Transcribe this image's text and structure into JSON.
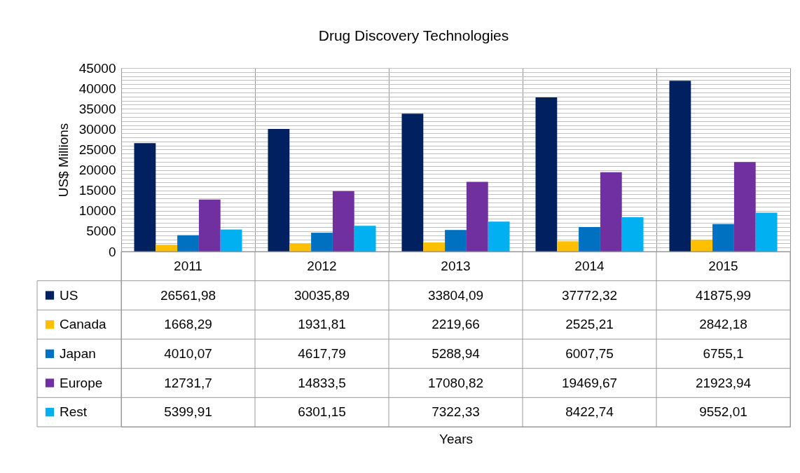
{
  "chart_data": {
    "type": "bar",
    "title": "Drug Discovery Technologies",
    "annotations": [
      "Years"
    ],
    "ylabel": "US$ Millions",
    "categories": [
      "2011",
      "2012",
      "2013",
      "2014",
      "2015"
    ],
    "series": [
      {
        "name": "US",
        "color": "#002060",
        "values": [
          26561.98,
          30035.89,
          33804.09,
          37772.32,
          41875.99
        ],
        "value_labels": [
          "26561,98",
          "30035,89",
          "33804,09",
          "37772,32",
          "41875,99"
        ]
      },
      {
        "name": "Canada",
        "color": "#ffc000",
        "values": [
          1668.29,
          1931.81,
          2219.66,
          2525.21,
          2842.18
        ],
        "value_labels": [
          "1668,29",
          "1931,81",
          "2219,66",
          "2525,21",
          "2842,18"
        ]
      },
      {
        "name": "Japan",
        "color": "#0070c0",
        "values": [
          4010.07,
          4617.79,
          5288.94,
          6007.75,
          6755.1
        ],
        "value_labels": [
          "4010,07",
          "4617,79",
          "5288,94",
          "6007,75",
          "6755,1"
        ]
      },
      {
        "name": "Europe",
        "color": "#7030a0",
        "values": [
          12731.7,
          14833.5,
          17080.82,
          19469.67,
          21923.94
        ],
        "value_labels": [
          "12731,7",
          "14833,5",
          "17080,82",
          "19469,67",
          "21923,94"
        ]
      },
      {
        "name": "Rest",
        "color": "#00b0f0",
        "values": [
          5399.91,
          6301.15,
          7322.33,
          8422.74,
          9552.01
        ],
        "value_labels": [
          "5399,91",
          "6301,15",
          "7322,33",
          "8422,74",
          "9552,01"
        ]
      }
    ],
    "ylim": [
      0,
      45000
    ],
    "yticks": [
      0,
      {
        "value": 1000,
        "label": null
      },
      {
        "value": 2000,
        "label": null
      },
      {
        "value": 3000,
        "label": null
      },
      {
        "value": 4000,
        "label": null
      },
      5000,
      {
        "value": 6000,
        "label": null
      },
      {
        "value": 7000,
        "label": null
      },
      {
        "value": 8000,
        "label": null
      },
      {
        "value": 9000,
        "label": null
      },
      10000,
      {
        "value": 11000,
        "label": null
      },
      {
        "value": 12000,
        "label": null
      },
      {
        "value": 13000,
        "label": null
      },
      {
        "value": 14000,
        "label": null
      },
      15000,
      {
        "value": 16000,
        "label": null
      },
      {
        "value": 17000,
        "label": null
      },
      {
        "value": 18000,
        "label": null
      },
      {
        "value": 19000,
        "label": null
      },
      20000,
      {
        "value": 21000,
        "label": null
      },
      {
        "value": 22000,
        "label": null
      },
      {
        "value": 23000,
        "label": null
      },
      {
        "value": 24000,
        "label": null
      },
      25000,
      {
        "value": 26000,
        "label": null
      },
      {
        "value": 27000,
        "label": null
      },
      {
        "value": 28000,
        "label": null
      },
      {
        "value": 29000,
        "label": null
      },
      30000,
      {
        "value": 31000,
        "label": null
      },
      {
        "value": 32000,
        "label": null
      },
      {
        "value": 33000,
        "label": null
      },
      {
        "value": 34000,
        "label": null
      },
      35000,
      {
        "value": 36000,
        "label": null
      },
      {
        "value": 37000,
        "label": null
      },
      {
        "value": 38000,
        "label": null
      },
      {
        "value": 39000,
        "label": null
      },
      40000,
      {
        "value": 41000,
        "label": null
      },
      {
        "value": 42000,
        "label": null
      },
      {
        "value": 43000,
        "label": null
      },
      {
        "value": 44000,
        "label": null
      },
      45000
    ],
    "grid": true,
    "legend": "bottom"
  }
}
